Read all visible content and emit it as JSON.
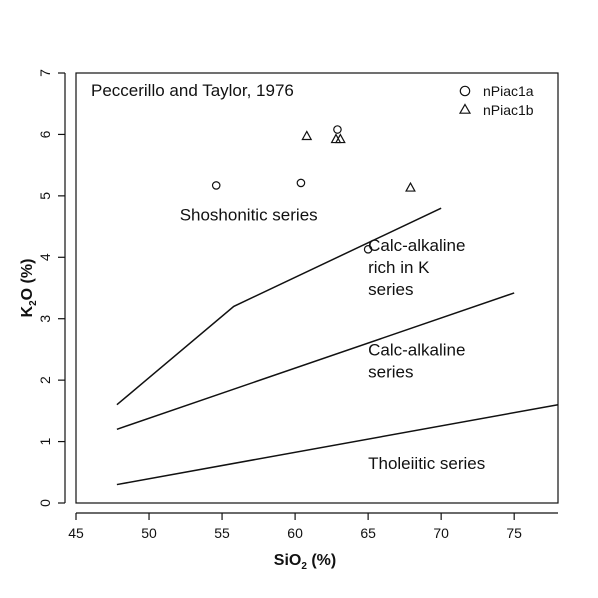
{
  "chart_data": {
    "type": "scatter",
    "title": "",
    "xlabel": {
      "main": "SiO",
      "sub": "2",
      "unit": " (%)"
    },
    "ylabel": {
      "main": "K",
      "sub": "2",
      "unit": "O (%)"
    },
    "xlim": [
      45,
      78
    ],
    "ylim": [
      0,
      7
    ],
    "xticks": [
      "45",
      "50",
      "55",
      "60",
      "65",
      "70",
      "75"
    ],
    "yticks": [
      "0",
      "1",
      "2",
      "3",
      "4",
      "5",
      "6",
      "7"
    ],
    "reference_text": "Peccerillo and Taylor, 1976",
    "legend": {
      "position": "top-right",
      "entries": [
        {
          "label": "nPiac1a",
          "marker": "circle-icon"
        },
        {
          "label": "nPiac1b",
          "marker": "triangle-icon"
        }
      ]
    },
    "series": [
      {
        "name": "nPiac1a",
        "marker": "circle",
        "points": [
          {
            "x": 54.6,
            "y": 5.17
          },
          {
            "x": 60.4,
            "y": 5.21
          },
          {
            "x": 62.9,
            "y": 6.08
          },
          {
            "x": 65.0,
            "y": 4.13
          }
        ]
      },
      {
        "name": "nPiac1b",
        "marker": "triangle",
        "points": [
          {
            "x": 60.8,
            "y": 5.97
          },
          {
            "x": 62.8,
            "y": 5.92
          },
          {
            "x": 63.1,
            "y": 5.92
          },
          {
            "x": 67.9,
            "y": 5.13
          }
        ]
      }
    ],
    "boundaries": [
      {
        "name": "shoshonitic-boundary",
        "points": [
          [
            47.8,
            1.6
          ],
          [
            55.8,
            3.2
          ],
          [
            70.0,
            4.8
          ]
        ]
      },
      {
        "name": "high-k-boundary",
        "points": [
          [
            47.8,
            1.2
          ],
          [
            75.0,
            3.42
          ]
        ]
      },
      {
        "name": "tholeiitic-boundary",
        "points": [
          [
            47.8,
            0.3
          ],
          [
            78.0,
            1.6
          ]
        ]
      }
    ],
    "fields": [
      {
        "lines": [
          "Shoshonitic series"
        ],
        "x": 52.1,
        "y": 4.6
      },
      {
        "lines": [
          "Calc-alkaline",
          "rich in K",
          "series"
        ],
        "x": 65.0,
        "y": 4.1
      },
      {
        "lines": [
          "Calc-alkaline",
          "series"
        ],
        "x": 65.0,
        "y": 2.4
      },
      {
        "lines": [
          "Tholeiitic series"
        ],
        "x": 65.0,
        "y": 0.55
      }
    ]
  }
}
